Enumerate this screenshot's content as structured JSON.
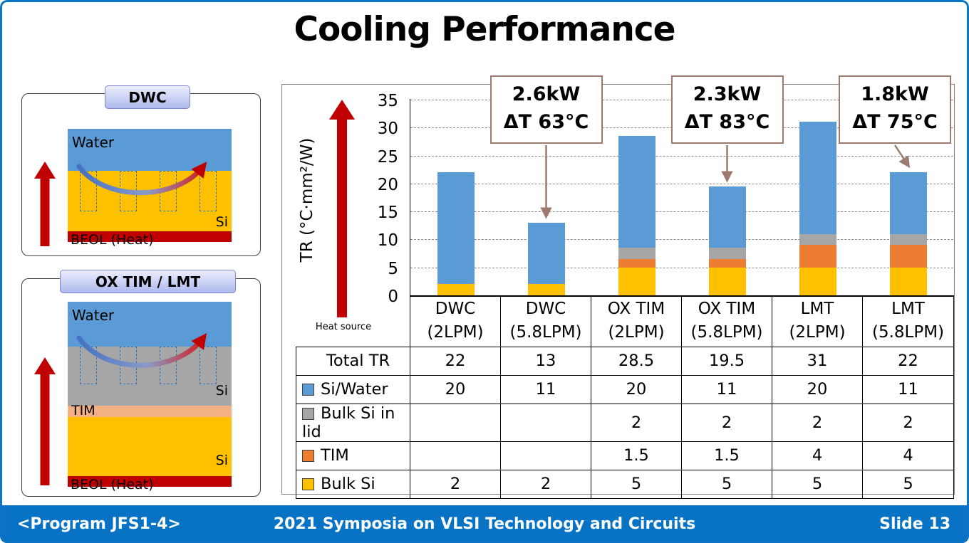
{
  "slide": {
    "title": "Cooling Performance",
    "footer": {
      "left": "<Program JFS1-4>",
      "center": "2021 Symposia on VLSI Technology and Circuits",
      "right": "Slide 13"
    }
  },
  "diagrams": {
    "dwc": {
      "tag": "DWC",
      "water": "Water",
      "si": "Si",
      "beol": "BEOL (Heat)"
    },
    "ox_lmt": {
      "tag": "OX TIM / LMT",
      "water": "Water",
      "si_lid": "Si",
      "tim": "TIM",
      "si": "Si",
      "beol": "BEOL (Heat)"
    }
  },
  "chart_data": {
    "type": "bar",
    "stacked": true,
    "title": "",
    "ylabel": "TR (°C·mm²/W)",
    "heat_source_label": "Heat source",
    "ylim": [
      0,
      35
    ],
    "yticks": [
      0,
      5,
      10,
      15,
      20,
      25,
      30,
      35
    ],
    "grid": "dashed-horizontal",
    "categories": [
      [
        "DWC",
        "(2LPM)"
      ],
      [
        "DWC",
        "(5.8LPM)"
      ],
      [
        "OX TIM",
        "(2LPM)"
      ],
      [
        "OX TIM",
        "(5.8LPM)"
      ],
      [
        "LMT",
        "(2LPM)"
      ],
      [
        "LMT",
        "(5.8LPM)"
      ]
    ],
    "series": [
      {
        "name": "Bulk Si",
        "color": "#FFC000",
        "values": [
          2,
          2,
          5,
          5,
          5,
          5
        ]
      },
      {
        "name": "TIM",
        "color": "#ED7D31",
        "values": [
          0,
          0,
          1.5,
          1.5,
          4,
          4
        ]
      },
      {
        "name": "Bulk Si in lid",
        "color": "#A6A6A6",
        "values": [
          0,
          0,
          2,
          2,
          2,
          2
        ]
      },
      {
        "name": "Si/Water",
        "color": "#5B9BD5",
        "values": [
          20,
          11,
          20,
          11,
          20,
          11
        ]
      }
    ],
    "totals": [
      22,
      13,
      28.5,
      19.5,
      31,
      22
    ],
    "annotations": [
      {
        "lines": [
          "2.6kW",
          "ΔT 63°C"
        ],
        "target_index": 1
      },
      {
        "lines": [
          "2.3kW",
          "ΔT 83°C"
        ],
        "target_index": 3
      },
      {
        "lines": [
          "1.8kW",
          "ΔT 75°C"
        ],
        "target_index": 5
      }
    ]
  },
  "table": {
    "rows": [
      {
        "label": "Total TR",
        "swatch": null,
        "values": [
          "22",
          "13",
          "28.5",
          "19.5",
          "31",
          "22"
        ]
      },
      {
        "label": "Si/Water",
        "swatch": "#5B9BD5",
        "values": [
          "20",
          "11",
          "20",
          "11",
          "20",
          "11"
        ]
      },
      {
        "label": "Bulk Si in lid",
        "swatch": "#A6A6A6",
        "values": [
          "",
          "",
          "2",
          "2",
          "2",
          "2"
        ]
      },
      {
        "label": "TIM",
        "swatch": "#ED7D31",
        "values": [
          "",
          "",
          "1.5",
          "1.5",
          "4",
          "4"
        ]
      },
      {
        "label": "Bulk Si",
        "swatch": "#FFC000",
        "values": [
          "2",
          "2",
          "5",
          "5",
          "5",
          "5"
        ]
      }
    ]
  },
  "colors": {
    "heat_red": "#C00000",
    "water_blue": "#5B9BD5",
    "footer_blue": "#0873C5",
    "annotation_border": "#9C7A70"
  }
}
